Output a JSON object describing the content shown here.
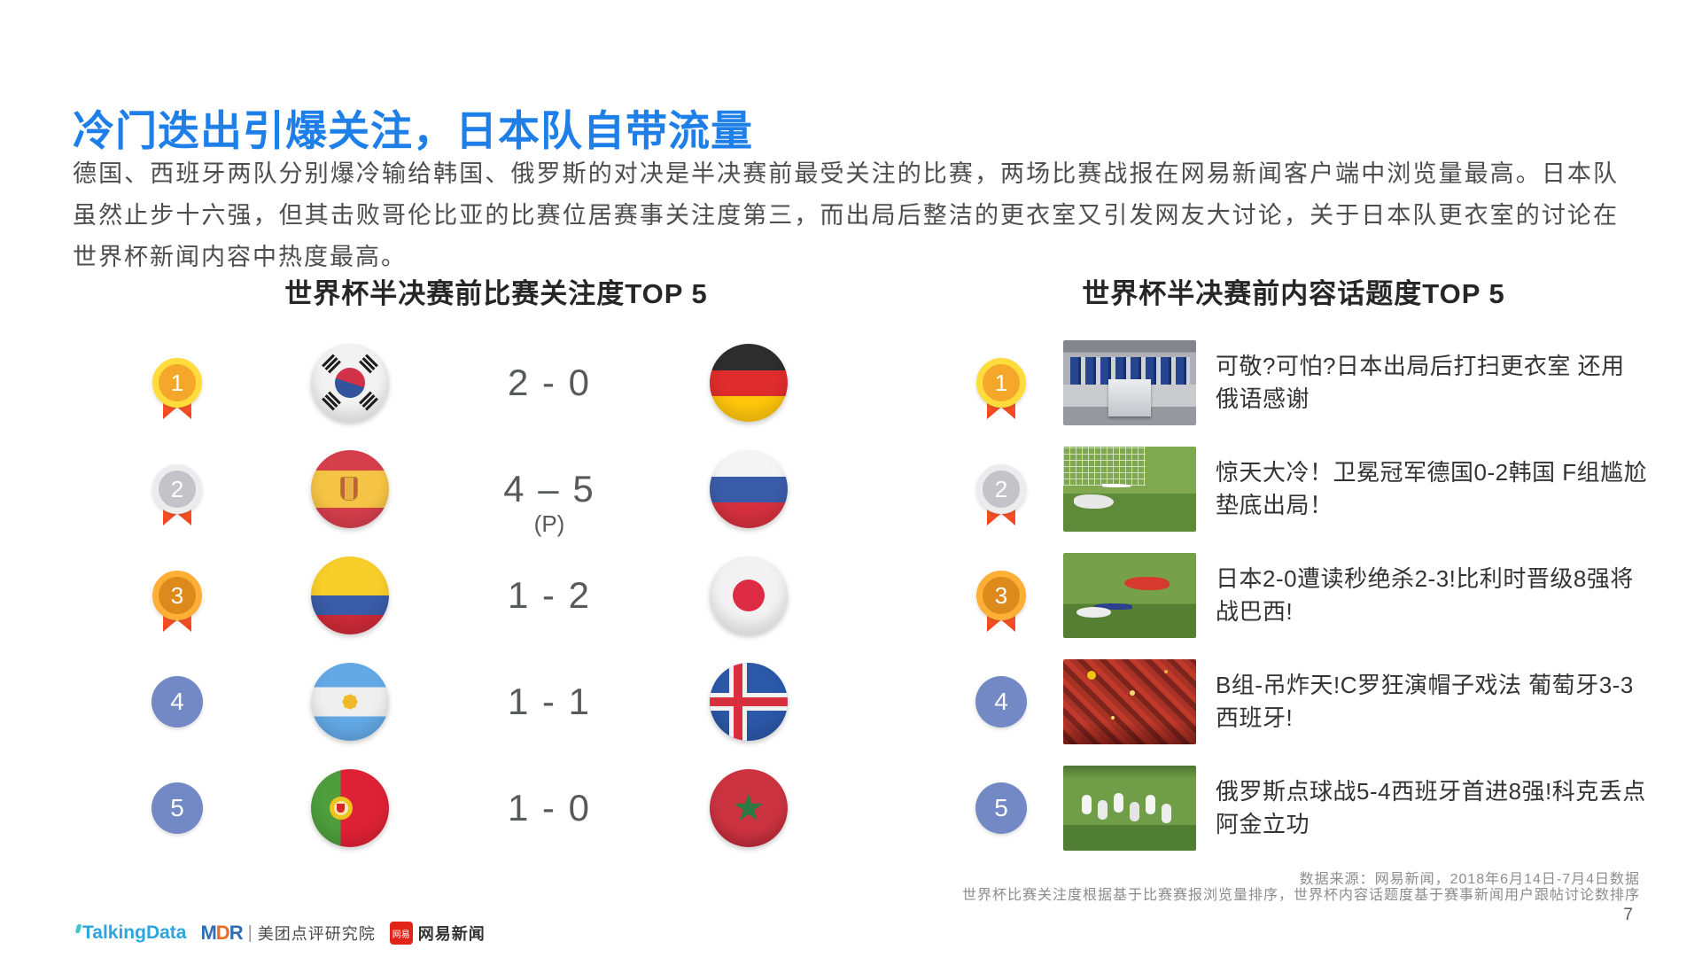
{
  "slide": {
    "title": "冷门迭出引爆关注，日本队自带流量",
    "paragraph": "德国、西班牙两队分别爆冷输给韩国、俄罗斯的对决是半决赛前最受关注的比赛，两场比赛战报在网易新闻客户端中浏览量最高。日本队虽然止步十六强，但其击败哥伦比亚的比赛位居赛事关注度第三，而出局后整洁的更衣室又引发网友大讨论，关于日本队更衣室的讨论在世界杯新闻内容中热度最高。",
    "page_number": "7"
  },
  "left_panel": {
    "title": "世界杯半决赛前比赛关注度TOP 5",
    "rows": [
      {
        "rank": "1",
        "medal": "gold",
        "home_flag": "south-korea",
        "score": "2 - 0",
        "away_flag": "germany"
      },
      {
        "rank": "2",
        "medal": "silver",
        "home_flag": "spain",
        "score": "4 – 5",
        "note": "(P)",
        "away_flag": "russia"
      },
      {
        "rank": "3",
        "medal": "bronze",
        "home_flag": "colombia",
        "score": "1 - 2",
        "away_flag": "japan"
      },
      {
        "rank": "4",
        "medal": "blue",
        "home_flag": "argentina",
        "score": "1 - 1",
        "away_flag": "iceland"
      },
      {
        "rank": "5",
        "medal": "blue",
        "home_flag": "portugal",
        "score": "1 - 0",
        "away_flag": "morocco"
      }
    ]
  },
  "right_panel": {
    "title": "世界杯半决赛前内容话题度TOP 5",
    "items": [
      {
        "rank": "1",
        "medal": "gold",
        "thumb": "locker-room",
        "headline": "可敬?可怕?日本出局后打扫更衣室 还用俄语感谢"
      },
      {
        "rank": "2",
        "medal": "silver",
        "thumb": "goalkeeper-pitch",
        "headline": "惊天大冷！卫冕冠军德国0-2韩国 F组尴尬垫底出局！"
      },
      {
        "rank": "3",
        "medal": "bronze",
        "thumb": "players-pitch",
        "headline": "日本2-0遭读秒绝杀2-3!比利时晋级8强将战巴西!"
      },
      {
        "rank": "4",
        "medal": "blue",
        "thumb": "red-crowd",
        "headline": "B组-吊炸天!C罗狂演帽子戏法 葡萄牙3-3西班牙!"
      },
      {
        "rank": "5",
        "medal": "blue",
        "thumb": "team-celebration",
        "headline": "俄罗斯点球战5-4西班牙首进8强!科克丢点阿金立功"
      }
    ]
  },
  "footer": {
    "source_line1": "数据来源：网易新闻，2018年6月14日-7月4日数据",
    "source_line2": "世界杯比赛关注度根据基于比赛赛报浏览量排序，世界杯内容话题度基于赛事新闻用户跟帖讨论数排序",
    "logos": {
      "talkingdata": "TalkingData",
      "mdr_m": "M",
      "mdr_d": "D",
      "mdr_r": "R",
      "divider": "|",
      "research": "美团点评研究院",
      "netease_badge": "网易",
      "netease": "网易新闻"
    }
  },
  "colors": {
    "accent_blue": "#1E7FE8",
    "heading_dark": "#262626",
    "body_text": "#4D4D4D",
    "score_text": "#58595B",
    "medal_gold_outer": "#FFDC3C",
    "medal_silver_outer": "#ECECEE",
    "medal_bronze_outer": "#FFAF36",
    "rank_blue": "#7289C6",
    "ribbon_red": "#F23C1E",
    "footer_gray": "#8C8C8C",
    "netease_red": "#E2231A",
    "talkingdata_blue": "#2CA6E0"
  }
}
